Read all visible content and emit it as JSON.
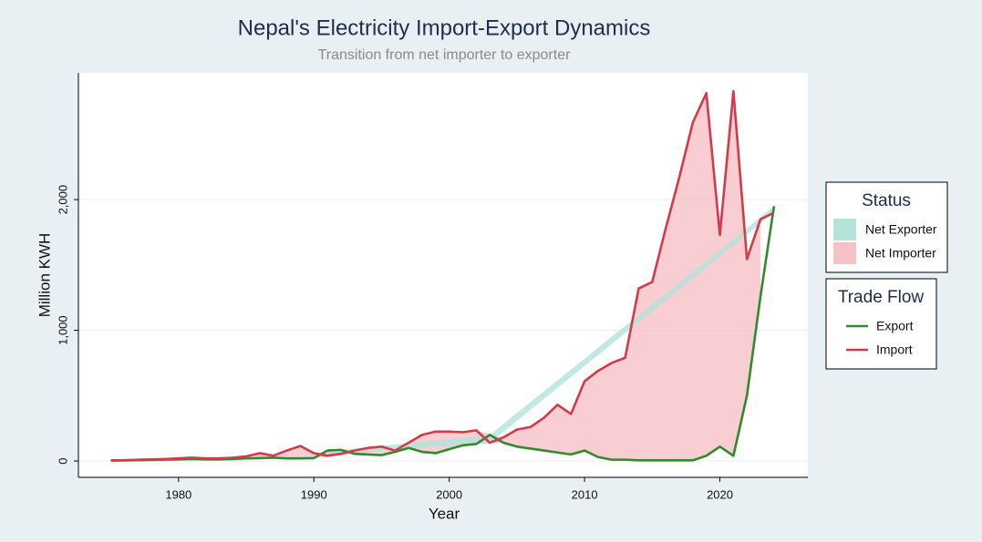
{
  "chart_data": {
    "type": "ribbon-line",
    "title": "Nepal's Electricity Import-Export Dynamics",
    "subtitle": "Transition from net importer to exporter",
    "x_label": "Year",
    "y_label": "Million KWH",
    "x": [
      1975,
      1976,
      1977,
      1978,
      1979,
      1980,
      1981,
      1982,
      1983,
      1984,
      1985,
      1986,
      1987,
      1988,
      1989,
      1990,
      1991,
      1992,
      1993,
      1994,
      1995,
      1996,
      1997,
      1998,
      1999,
      2000,
      2001,
      2002,
      2003,
      2004,
      2005,
      2006,
      2007,
      2008,
      2009,
      2010,
      2011,
      2012,
      2013,
      2014,
      2015,
      2016,
      2017,
      2018,
      2019,
      2020,
      2021,
      2022,
      2023,
      2024
    ],
    "series": [
      {
        "name": "Export",
        "color": "#2e8b2e",
        "values": [
          3,
          4,
          6,
          8,
          10,
          12,
          15,
          12,
          12,
          15,
          20,
          22,
          25,
          20,
          20,
          22,
          80,
          85,
          55,
          50,
          45,
          70,
          100,
          70,
          60,
          90,
          120,
          130,
          200,
          140,
          110,
          95,
          80,
          65,
          50,
          80,
          30,
          10,
          10,
          5,
          5,
          5,
          5,
          5,
          40,
          110,
          40,
          500,
          1260,
          1950
        ]
      },
      {
        "name": "Import",
        "color": "#d33a4a",
        "values": [
          5,
          6,
          10,
          12,
          15,
          20,
          25,
          20,
          20,
          25,
          35,
          60,
          40,
          80,
          115,
          60,
          40,
          55,
          80,
          100,
          110,
          80,
          140,
          200,
          225,
          225,
          220,
          235,
          140,
          180,
          240,
          260,
          330,
          430,
          360,
          610,
          690,
          750,
          790,
          1320,
          1370,
          1780,
          2170,
          2590,
          2815,
          1730,
          2830,
          1545,
          1850,
          1900
        ]
      }
    ],
    "status_title": "Status",
    "status": [
      {
        "name": "Net Exporter",
        "color": "#b3e3d9"
      },
      {
        "name": "Net Importer",
        "color": "#f6c2c7"
      }
    ],
    "flow_title": "Trade Flow",
    "xlim": [
      1972.6,
      2026.5
    ],
    "ylim": [
      -125,
      2970
    ],
    "xticks": [
      1980,
      1990,
      2000,
      2010,
      2020
    ],
    "yticks": [
      0,
      {
        "value": 1000,
        "label": "1,000"
      },
      {
        "value": 2000,
        "label": "2,000"
      }
    ],
    "grid": true
  }
}
